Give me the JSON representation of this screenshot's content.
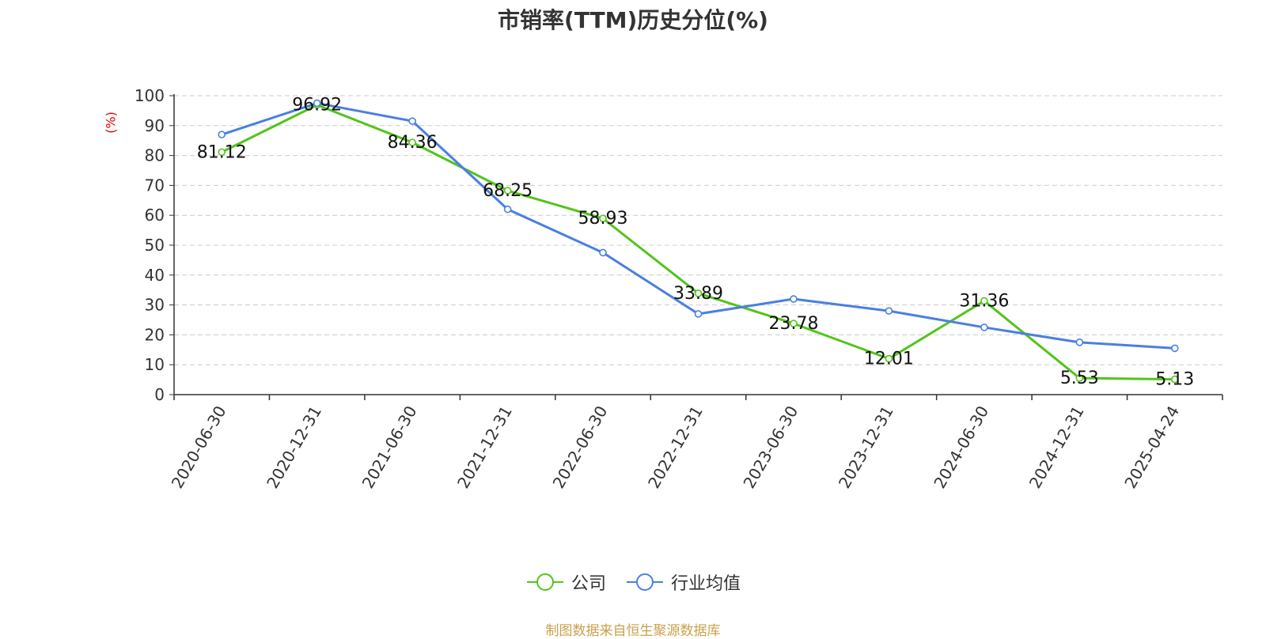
{
  "title": "市销率(TTM)历史分位(%)",
  "ylabel": "(%)",
  "source": "制图数据来自恒生聚源数据库",
  "colors": {
    "company": "#52c41a",
    "industry": "#4a7fe0"
  },
  "chart_data": {
    "type": "line",
    "title": "市销率(TTM)历史分位(%)",
    "ylabel": "(%)",
    "ylim": [
      0,
      100
    ],
    "yticks": [
      0,
      10,
      20,
      30,
      40,
      50,
      60,
      70,
      80,
      90,
      100
    ],
    "grid": true,
    "legend_position": "bottom",
    "categories": [
      "2020-06-30",
      "2020-12-31",
      "2021-06-30",
      "2021-12-31",
      "2022-06-30",
      "2022-12-31",
      "2023-06-30",
      "2023-12-31",
      "2024-06-30",
      "2024-12-31",
      "2025-04-24"
    ],
    "series": [
      {
        "name": "公司",
        "values": [
          81.12,
          96.92,
          84.36,
          68.25,
          58.93,
          33.89,
          23.78,
          12.01,
          31.36,
          5.53,
          5.13
        ],
        "labels": [
          "81.12",
          "96.92",
          "84.36",
          "68.25",
          "58.93",
          "33.89",
          "23.78",
          "12.01",
          "31.36",
          "5.53",
          "5.13"
        ]
      },
      {
        "name": "行业均值",
        "values": [
          87,
          97.5,
          91.5,
          62,
          47.5,
          27,
          32,
          28,
          22.5,
          17.5,
          15.5
        ]
      }
    ]
  }
}
